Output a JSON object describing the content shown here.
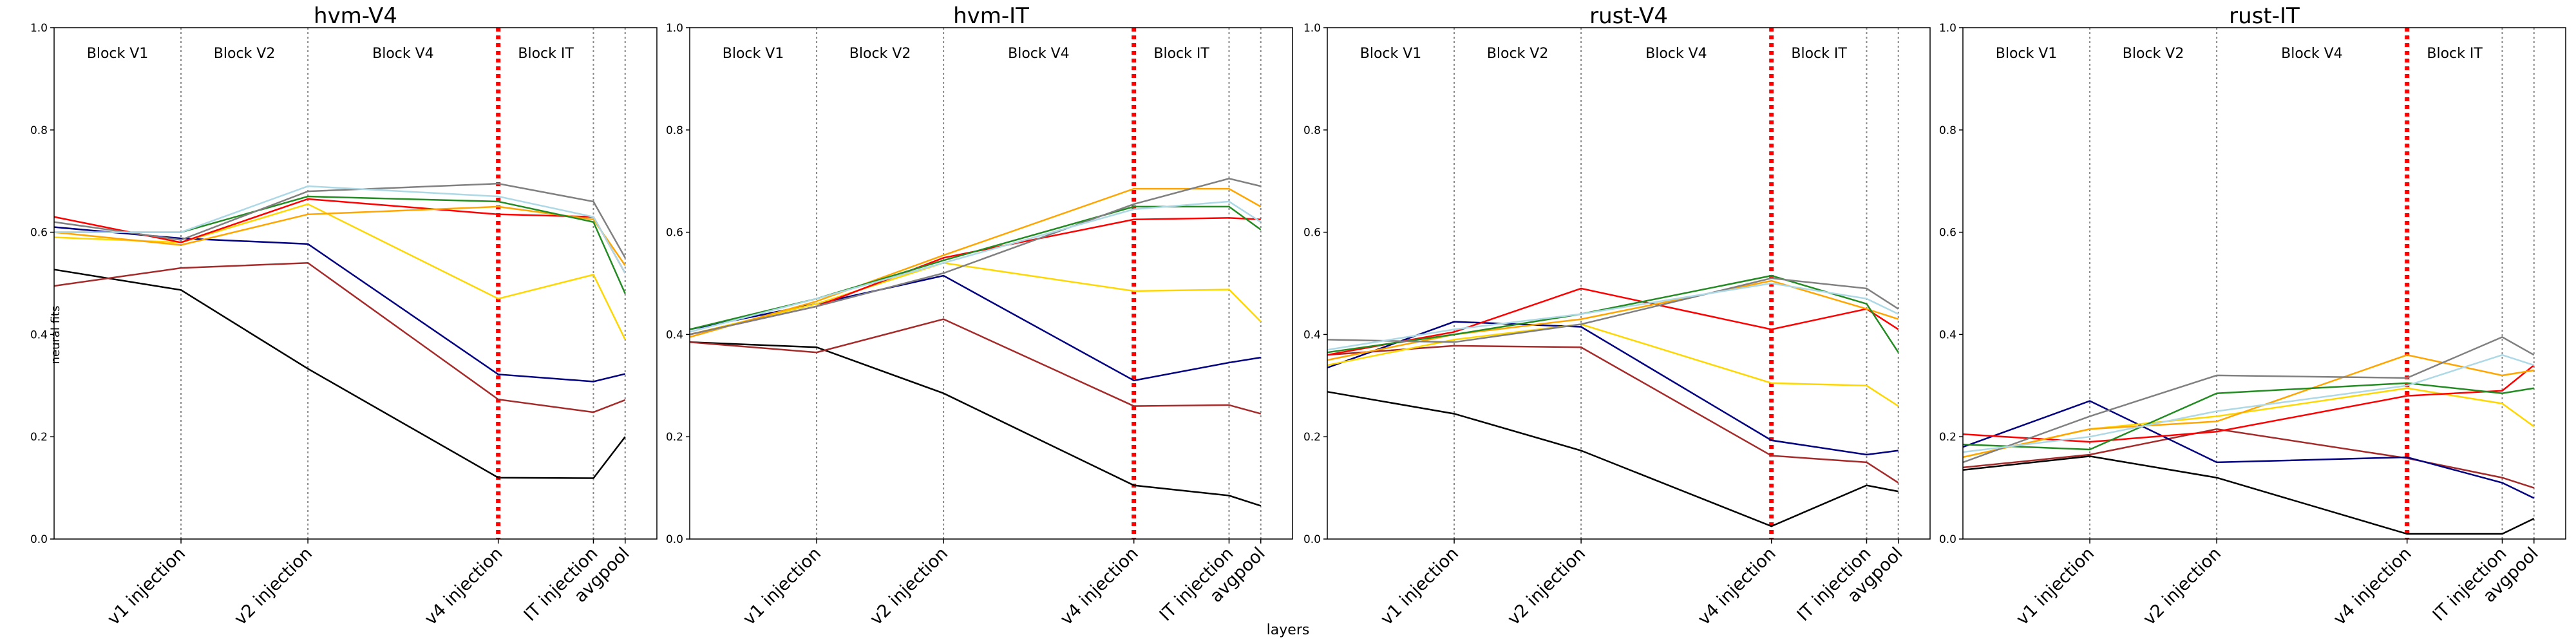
{
  "xlabel": "layers",
  "ylabel": "neural fits",
  "chart_data": [
    {
      "type": "line",
      "title": "hvm-V4",
      "x": [
        0,
        4,
        8,
        14,
        17,
        18
      ],
      "xlim": [
        0,
        19
      ],
      "xticks": [
        {
          "value": 4,
          "label": "v1 injection"
        },
        {
          "value": 8,
          "label": "v2 injection"
        },
        {
          "value": 14,
          "label": "v4 injection"
        },
        {
          "value": 17,
          "label": "IT injection"
        },
        {
          "value": 18,
          "label": "avgpool"
        }
      ],
      "highlight_tick": 2,
      "highlight_color": "#ff0000",
      "blocks": [
        "Block V1",
        "Block V2",
        "Block V4",
        "Block IT"
      ],
      "ylim": [
        0,
        1
      ],
      "yticks": [
        {
          "value": 0,
          "label": "0.0"
        },
        0.2,
        0.4,
        0.6,
        0.8,
        {
          "value": 1,
          "label": "1.0"
        }
      ],
      "series": [
        {
          "color": "#000000",
          "values": [
            0.527,
            0.487,
            0.333,
            0.12,
            0.119,
            0.2
          ]
        },
        {
          "color": "#a52a2a",
          "values": [
            0.495,
            0.53,
            0.54,
            0.273,
            0.248,
            0.272
          ]
        },
        {
          "color": "#000080",
          "values": [
            0.61,
            0.588,
            0.577,
            0.322,
            0.308,
            0.323
          ]
        },
        {
          "color": "#ffd700",
          "values": [
            0.59,
            0.58,
            0.655,
            0.47,
            0.517,
            0.39
          ]
        },
        {
          "color": "#ff0000",
          "values": [
            0.63,
            0.58,
            0.665,
            0.635,
            0.63,
            0.52
          ]
        },
        {
          "color": "#ffa500",
          "values": [
            0.6,
            0.575,
            0.635,
            0.65,
            0.625,
            0.535
          ]
        },
        {
          "color": "#228b22",
          "values": [
            0.6,
            0.6,
            0.67,
            0.66,
            0.62,
            0.48
          ]
        },
        {
          "color": "#808080",
          "values": [
            0.62,
            0.585,
            0.68,
            0.695,
            0.66,
            0.55
          ]
        },
        {
          "color": "#add8e6",
          "values": [
            0.6,
            0.6,
            0.69,
            0.67,
            0.63,
            0.52
          ]
        }
      ]
    },
    {
      "type": "line",
      "title": "hvm-IT",
      "x": [
        0,
        4,
        8,
        14,
        17,
        18
      ],
      "xlim": [
        0,
        19
      ],
      "xticks": [
        {
          "value": 4,
          "label": "v1 injection"
        },
        {
          "value": 8,
          "label": "v2 injection"
        },
        {
          "value": 14,
          "label": "v4 injection"
        },
        {
          "value": 17,
          "label": "IT injection"
        },
        {
          "value": 18,
          "label": "avgpool"
        }
      ],
      "highlight_tick": 2,
      "highlight_color": "#ff0000",
      "blocks": [
        "Block V1",
        "Block V2",
        "Block V4",
        "Block IT"
      ],
      "ylim": [
        0,
        1
      ],
      "yticks": [
        {
          "value": 0,
          "label": "0.0"
        },
        0.2,
        0.4,
        0.6,
        0.8,
        {
          "value": 1,
          "label": "1.0"
        }
      ],
      "series": [
        {
          "color": "#000000",
          "values": [
            0.385,
            0.375,
            0.285,
            0.105,
            0.085,
            0.065
          ]
        },
        {
          "color": "#a52a2a",
          "values": [
            0.385,
            0.365,
            0.43,
            0.26,
            0.262,
            0.245
          ]
        },
        {
          "color": "#000080",
          "values": [
            0.41,
            0.46,
            0.515,
            0.31,
            0.345,
            0.355
          ]
        },
        {
          "color": "#ffd700",
          "values": [
            0.4,
            0.46,
            0.54,
            0.485,
            0.488,
            0.425
          ]
        },
        {
          "color": "#ff0000",
          "values": [
            0.4,
            0.455,
            0.55,
            0.625,
            0.628,
            0.625
          ]
        },
        {
          "color": "#ffa500",
          "values": [
            0.395,
            0.465,
            0.555,
            0.685,
            0.685,
            0.65
          ]
        },
        {
          "color": "#228b22",
          "values": [
            0.41,
            0.47,
            0.545,
            0.65,
            0.65,
            0.605
          ]
        },
        {
          "color": "#808080",
          "values": [
            0.4,
            0.455,
            0.52,
            0.655,
            0.705,
            0.69
          ]
        },
        {
          "color": "#add8e6",
          "values": [
            0.405,
            0.47,
            0.54,
            0.645,
            0.66,
            0.62
          ]
        }
      ]
    },
    {
      "type": "line",
      "title": "rust-V4",
      "x": [
        0,
        4,
        8,
        14,
        17,
        18
      ],
      "xlim": [
        0,
        19
      ],
      "xticks": [
        {
          "value": 4,
          "label": "v1 injection"
        },
        {
          "value": 8,
          "label": "v2 injection"
        },
        {
          "value": 14,
          "label": "v4 injection"
        },
        {
          "value": 17,
          "label": "IT injection"
        },
        {
          "value": 18,
          "label": "avgpool"
        }
      ],
      "highlight_tick": 2,
      "highlight_color": "#ff0000",
      "blocks": [
        "Block V1",
        "Block V2",
        "Block V4",
        "Block IT"
      ],
      "ylim": [
        0,
        1
      ],
      "yticks": [
        {
          "value": 0,
          "label": "0.0"
        },
        0.2,
        0.4,
        0.6,
        0.8,
        {
          "value": 1,
          "label": "1.0"
        }
      ],
      "series": [
        {
          "color": "#000000",
          "values": [
            0.288,
            0.245,
            0.173,
            0.025,
            0.105,
            0.093
          ]
        },
        {
          "color": "#a52a2a",
          "values": [
            0.36,
            0.378,
            0.375,
            0.163,
            0.15,
            0.11
          ]
        },
        {
          "color": "#000080",
          "values": [
            0.335,
            0.425,
            0.415,
            0.193,
            0.165,
            0.173
          ]
        },
        {
          "color": "#ffd700",
          "values": [
            0.34,
            0.39,
            0.42,
            0.305,
            0.3,
            0.26
          ]
        },
        {
          "color": "#ff0000",
          "values": [
            0.36,
            0.405,
            0.49,
            0.41,
            0.45,
            0.41
          ]
        },
        {
          "color": "#ffa500",
          "values": [
            0.35,
            0.4,
            0.43,
            0.505,
            0.45,
            0.43
          ]
        },
        {
          "color": "#228b22",
          "values": [
            0.365,
            0.4,
            0.44,
            0.515,
            0.46,
            0.365
          ]
        },
        {
          "color": "#808080",
          "values": [
            0.39,
            0.385,
            0.42,
            0.51,
            0.49,
            0.45
          ]
        },
        {
          "color": "#add8e6",
          "values": [
            0.37,
            0.41,
            0.44,
            0.5,
            0.47,
            0.44
          ]
        }
      ]
    },
    {
      "type": "line",
      "title": "rust-IT",
      "x": [
        0,
        4,
        8,
        14,
        17,
        18
      ],
      "xlim": [
        0,
        19
      ],
      "xticks": [
        {
          "value": 4,
          "label": "v1 injection"
        },
        {
          "value": 8,
          "label": "v2 injection"
        },
        {
          "value": 14,
          "label": "v4 injection"
        },
        {
          "value": 17,
          "label": "IT injection"
        },
        {
          "value": 18,
          "label": "avgpool"
        }
      ],
      "highlight_tick": 2,
      "highlight_color": "#ff0000",
      "blocks": [
        "Block V1",
        "Block V2",
        "Block V4",
        "Block IT"
      ],
      "ylim": [
        0,
        1
      ],
      "yticks": [
        {
          "value": 0,
          "label": "0.0"
        },
        0.2,
        0.4,
        0.6,
        0.8,
        {
          "value": 1,
          "label": "1.0"
        }
      ],
      "series": [
        {
          "color": "#000000",
          "values": [
            0.135,
            0.162,
            0.12,
            0.01,
            0.01,
            0.04
          ]
        },
        {
          "color": "#a52a2a",
          "values": [
            0.14,
            0.165,
            0.215,
            0.158,
            0.12,
            0.1
          ]
        },
        {
          "color": "#000080",
          "values": [
            0.18,
            0.27,
            0.15,
            0.16,
            0.11,
            0.08
          ]
        },
        {
          "color": "#ffd700",
          "values": [
            0.16,
            0.215,
            0.24,
            0.295,
            0.265,
            0.22
          ]
        },
        {
          "color": "#ff0000",
          "values": [
            0.205,
            0.19,
            0.21,
            0.28,
            0.29,
            0.34
          ]
        },
        {
          "color": "#ffa500",
          "values": [
            0.16,
            0.215,
            0.23,
            0.36,
            0.32,
            0.33
          ]
        },
        {
          "color": "#228b22",
          "values": [
            0.185,
            0.175,
            0.285,
            0.305,
            0.285,
            0.295
          ]
        },
        {
          "color": "#808080",
          "values": [
            0.15,
            0.24,
            0.32,
            0.315,
            0.395,
            0.36
          ]
        },
        {
          "color": "#add8e6",
          "values": [
            0.17,
            0.2,
            0.25,
            0.3,
            0.36,
            0.34
          ]
        }
      ]
    }
  ]
}
